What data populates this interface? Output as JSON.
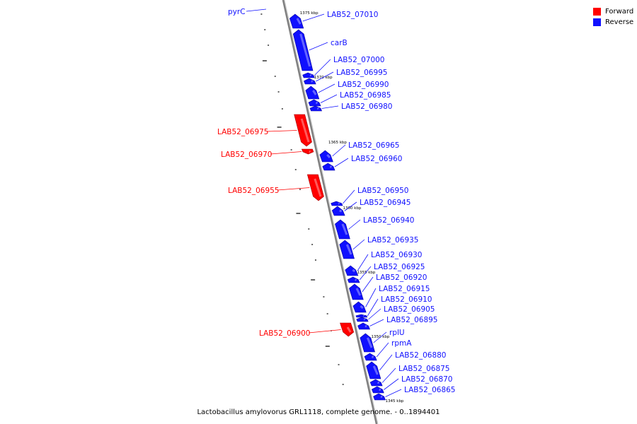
{
  "colors": {
    "forward": "#ff0000",
    "reverse": "#1010ff",
    "backbone": "#808080"
  },
  "legend": [
    {
      "label": "Forward",
      "color": "#ff0000"
    },
    {
      "label": "Reverse",
      "color": "#1010ff"
    }
  ],
  "caption": "Lactobacillus amylovorus GRL1118, complete genome. - 0..1894401",
  "scale_labels": [
    "1375 kbp",
    "1370 kbp",
    "1365 kbp",
    "1360 kbp",
    "1355 kbp",
    "1350 kbp",
    "1345 kbp"
  ],
  "genes": [
    {
      "name": "pyrC",
      "strand": "reverse"
    },
    {
      "name": "LAB52_07010",
      "strand": "reverse"
    },
    {
      "name": "carB",
      "strand": "reverse"
    },
    {
      "name": "LAB52_07000",
      "strand": "reverse"
    },
    {
      "name": "LAB52_06995",
      "strand": "reverse"
    },
    {
      "name": "LAB52_06990",
      "strand": "reverse"
    },
    {
      "name": "LAB52_06985",
      "strand": "reverse"
    },
    {
      "name": "LAB52_06980",
      "strand": "reverse"
    },
    {
      "name": "LAB52_06975",
      "strand": "forward"
    },
    {
      "name": "LAB52_06970",
      "strand": "forward"
    },
    {
      "name": "LAB52_06965",
      "strand": "reverse"
    },
    {
      "name": "LAB52_06960",
      "strand": "reverse"
    },
    {
      "name": "LAB52_06955",
      "strand": "forward"
    },
    {
      "name": "LAB52_06950",
      "strand": "reverse"
    },
    {
      "name": "LAB52_06945",
      "strand": "reverse"
    },
    {
      "name": "LAB52_06940",
      "strand": "reverse"
    },
    {
      "name": "LAB52_06935",
      "strand": "reverse"
    },
    {
      "name": "LAB52_06930",
      "strand": "reverse"
    },
    {
      "name": "LAB52_06925",
      "strand": "reverse"
    },
    {
      "name": "LAB52_06920",
      "strand": "reverse"
    },
    {
      "name": "LAB52_06915",
      "strand": "reverse"
    },
    {
      "name": "LAB52_06910",
      "strand": "reverse"
    },
    {
      "name": "LAB52_06905",
      "strand": "reverse"
    },
    {
      "name": "LAB52_06895",
      "strand": "reverse"
    },
    {
      "name": "LAB52_06900",
      "strand": "forward"
    },
    {
      "name": "rplU",
      "strand": "reverse"
    },
    {
      "name": "rpmA",
      "strand": "reverse"
    },
    {
      "name": "LAB52_06880",
      "strand": "reverse"
    },
    {
      "name": "LAB52_06875",
      "strand": "reverse"
    },
    {
      "name": "LAB52_06870",
      "strand": "reverse"
    },
    {
      "name": "LAB52_06865",
      "strand": "reverse"
    }
  ]
}
